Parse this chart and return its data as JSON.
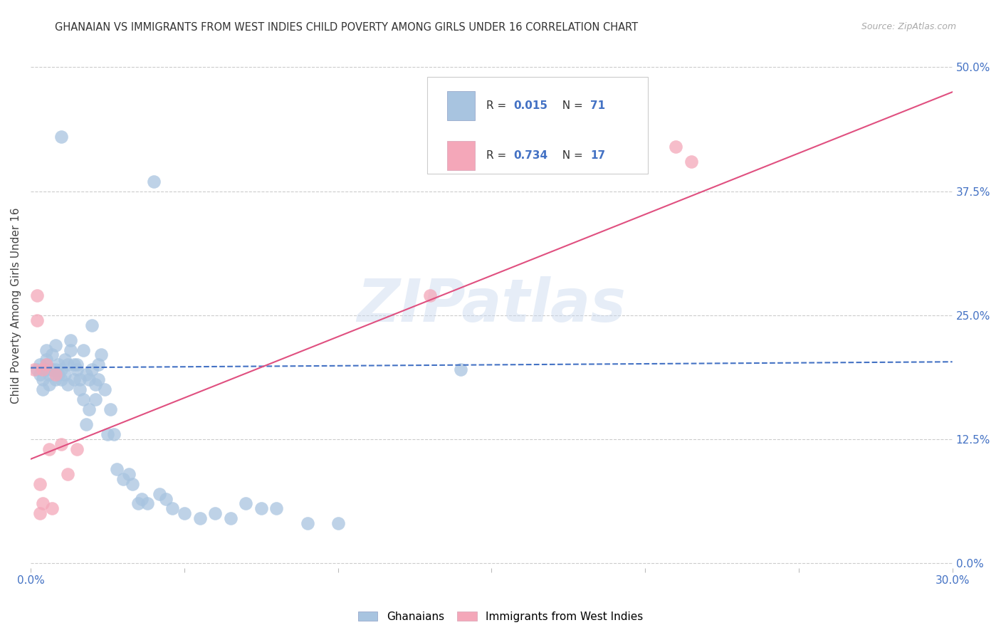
{
  "title": "GHANAIAN VS IMMIGRANTS FROM WEST INDIES CHILD POVERTY AMONG GIRLS UNDER 16 CORRELATION CHART",
  "source": "Source: ZipAtlas.com",
  "ylabel": "Child Poverty Among Girls Under 16",
  "ytick_labels": [
    "0.0%",
    "12.5%",
    "25.0%",
    "37.5%",
    "50.0%"
  ],
  "ytick_values": [
    0.0,
    0.125,
    0.25,
    0.375,
    0.5
  ],
  "xlim": [
    0.0,
    0.3
  ],
  "ylim": [
    -0.005,
    0.525
  ],
  "blue_color": "#a8c4e0",
  "blue_line_color": "#4472c4",
  "pink_color": "#f4a7b9",
  "pink_line_color": "#e05080",
  "background_color": "#ffffff",
  "grid_color": "#cccccc",
  "axis_label_color": "#4472c4",
  "blue_x": [
    0.002,
    0.003,
    0.003,
    0.004,
    0.004,
    0.005,
    0.005,
    0.005,
    0.005,
    0.006,
    0.006,
    0.007,
    0.007,
    0.008,
    0.008,
    0.008,
    0.009,
    0.009,
    0.01,
    0.01,
    0.01,
    0.011,
    0.011,
    0.012,
    0.012,
    0.013,
    0.013,
    0.014,
    0.014,
    0.015,
    0.015,
    0.016,
    0.016,
    0.017,
    0.017,
    0.018,
    0.018,
    0.019,
    0.019,
    0.02,
    0.02,
    0.021,
    0.021,
    0.022,
    0.022,
    0.023,
    0.024,
    0.025,
    0.026,
    0.027,
    0.028,
    0.03,
    0.032,
    0.033,
    0.035,
    0.036,
    0.038,
    0.04,
    0.042,
    0.044,
    0.046,
    0.05,
    0.055,
    0.06,
    0.065,
    0.07,
    0.075,
    0.08,
    0.09,
    0.1,
    0.14
  ],
  "blue_y": [
    0.195,
    0.19,
    0.2,
    0.185,
    0.175,
    0.2,
    0.195,
    0.205,
    0.215,
    0.19,
    0.18,
    0.195,
    0.21,
    0.185,
    0.195,
    0.22,
    0.19,
    0.2,
    0.185,
    0.195,
    0.43,
    0.19,
    0.205,
    0.18,
    0.2,
    0.215,
    0.225,
    0.2,
    0.185,
    0.195,
    0.2,
    0.185,
    0.175,
    0.215,
    0.165,
    0.19,
    0.14,
    0.185,
    0.155,
    0.195,
    0.24,
    0.18,
    0.165,
    0.2,
    0.185,
    0.21,
    0.175,
    0.13,
    0.155,
    0.13,
    0.095,
    0.085,
    0.09,
    0.08,
    0.06,
    0.065,
    0.06,
    0.385,
    0.07,
    0.065,
    0.055,
    0.05,
    0.045,
    0.05,
    0.045,
    0.06,
    0.055,
    0.055,
    0.04,
    0.04,
    0.195
  ],
  "pink_x": [
    0.001,
    0.002,
    0.003,
    0.004,
    0.005,
    0.006,
    0.007,
    0.008,
    0.01,
    0.012,
    0.015,
    0.13,
    0.21,
    0.215,
    0.002,
    0.003,
    0.004
  ],
  "pink_y": [
    0.195,
    0.27,
    0.05,
    0.195,
    0.2,
    0.115,
    0.055,
    0.19,
    0.12,
    0.09,
    0.115,
    0.27,
    0.42,
    0.405,
    0.245,
    0.08,
    0.06
  ],
  "blue_line_y0": 0.197,
  "blue_line_y1": 0.203,
  "pink_line_y0": 0.105,
  "pink_line_y1": 0.475,
  "watermark": "ZIPatlas"
}
